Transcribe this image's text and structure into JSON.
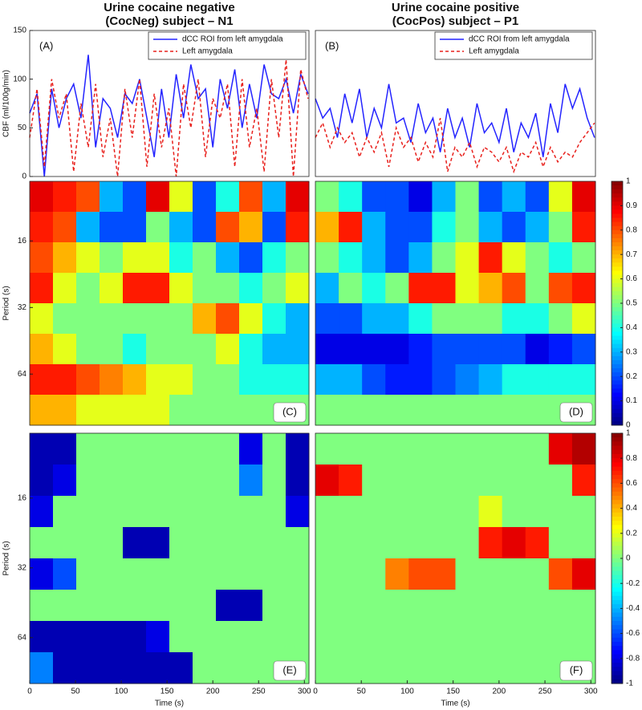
{
  "chart_data": [
    {
      "type": "line",
      "title": [
        "Urine cocaine negative",
        "(CocNeg) subject – N1"
      ],
      "panel_label": "(A)",
      "ylabel": "CBF (ml/100g/min)",
      "x": [
        0,
        8,
        16,
        24,
        32,
        40,
        48,
        56,
        64,
        72,
        80,
        88,
        96,
        104,
        112,
        120,
        128,
        136,
        144,
        152,
        160,
        168,
        176,
        184,
        192,
        200,
        208,
        216,
        224,
        232,
        240,
        248,
        256,
        264,
        272,
        280,
        288,
        296,
        304
      ],
      "xlim": [
        0,
        305
      ],
      "ylim": [
        0,
        150
      ],
      "yticks": [
        0,
        50,
        100,
        150
      ],
      "legend": "upper right",
      "series": [
        {
          "name": "dCC ROI from left amygdala",
          "color": "#2424ff",
          "linestyle": "solid",
          "values": [
            65,
            85,
            0,
            90,
            50,
            80,
            95,
            60,
            125,
            30,
            80,
            70,
            40,
            85,
            75,
            100,
            60,
            20,
            90,
            40,
            105,
            60,
            115,
            80,
            90,
            30,
            100,
            70,
            110,
            50,
            95,
            60,
            115,
            85,
            80,
            100,
            65,
            105,
            85
          ]
        },
        {
          "name": "Left amygdala",
          "color": "#e8201c",
          "linestyle": "dashed",
          "values": [
            40,
            90,
            10,
            100,
            60,
            85,
            5,
            75,
            30,
            95,
            20,
            60,
            0,
            90,
            40,
            100,
            10,
            85,
            30,
            70,
            0,
            95,
            50,
            100,
            20,
            80,
            60,
            95,
            10,
            100,
            30,
            70,
            5,
            100,
            40,
            120,
            0,
            110,
            80
          ]
        }
      ]
    },
    {
      "type": "line",
      "title": [
        "Urine cocaine positive",
        "(CocPos) subject – P1"
      ],
      "panel_label": "(B)",
      "x": [
        0,
        8,
        16,
        24,
        32,
        40,
        48,
        56,
        64,
        72,
        80,
        88,
        96,
        104,
        112,
        120,
        128,
        136,
        144,
        152,
        160,
        168,
        176,
        184,
        192,
        200,
        208,
        216,
        224,
        232,
        240,
        248,
        256,
        264,
        272,
        280,
        288,
        296,
        304
      ],
      "xlim": [
        0,
        305
      ],
      "ylim": [
        0,
        150
      ],
      "legend": "upper right",
      "series": [
        {
          "name": "dCC ROI from left amygdala",
          "color": "#2424ff",
          "linestyle": "solid",
          "values": [
            80,
            60,
            70,
            40,
            85,
            55,
            90,
            40,
            70,
            50,
            95,
            55,
            60,
            35,
            75,
            45,
            60,
            25,
            70,
            40,
            60,
            30,
            75,
            45,
            55,
            35,
            70,
            25,
            55,
            40,
            65,
            20,
            75,
            45,
            95,
            70,
            90,
            60,
            40
          ]
        },
        {
          "name": "Left amygdala",
          "color": "#e8201c",
          "linestyle": "dashed",
          "values": [
            40,
            55,
            30,
            50,
            35,
            45,
            20,
            40,
            25,
            45,
            10,
            50,
            30,
            40,
            15,
            35,
            20,
            60,
            5,
            30,
            20,
            35,
            10,
            30,
            25,
            15,
            30,
            5,
            25,
            20,
            35,
            10,
            30,
            15,
            25,
            20,
            35,
            45,
            55
          ]
        }
      ]
    },
    {
      "type": "heatmap",
      "panel_label": "(C)",
      "ylabel": "Period (s)",
      "log_y": true,
      "xlim": [
        0,
        305
      ],
      "ylim": [
        8.6,
        109
      ],
      "yticks": [
        16,
        32,
        64
      ],
      "zlim": [
        0,
        1
      ],
      "z": [
        [
          0.9,
          0.85,
          0.8,
          0.3,
          0.2,
          0.9,
          0.6,
          0.2,
          0.4,
          0.8,
          0.3,
          0.9
        ],
        [
          0.85,
          0.8,
          0.3,
          0.2,
          0.2,
          0.5,
          0.3,
          0.2,
          0.8,
          0.7,
          0.2,
          0.85
        ],
        [
          0.8,
          0.7,
          0.6,
          0.5,
          0.6,
          0.6,
          0.4,
          0.5,
          0.3,
          0.2,
          0.4,
          0.5
        ],
        [
          0.85,
          0.6,
          0.5,
          0.6,
          0.85,
          0.85,
          0.6,
          0.5,
          0.5,
          0.4,
          0.5,
          0.6
        ],
        [
          0.6,
          0.5,
          0.5,
          0.5,
          0.5,
          0.5,
          0.5,
          0.7,
          0.8,
          0.6,
          0.4,
          0.3
        ],
        [
          0.7,
          0.6,
          0.5,
          0.5,
          0.4,
          0.5,
          0.5,
          0.5,
          0.6,
          0.4,
          0.3,
          0.3
        ],
        [
          0.85,
          0.85,
          0.8,
          0.75,
          0.7,
          0.6,
          0.6,
          0.5,
          0.5,
          0.4,
          0.4,
          0.4
        ],
        [
          0.7,
          0.7,
          0.6,
          0.6,
          0.6,
          0.6,
          0.5,
          0.5,
          0.5,
          0.5,
          0.5,
          0.5
        ]
      ]
    },
    {
      "type": "heatmap",
      "panel_label": "(D)",
      "log_y": true,
      "xlim": [
        0,
        305
      ],
      "ylim": [
        8.6,
        109
      ],
      "zlim": [
        0,
        1
      ],
      "zticks": [
        0,
        0.1,
        0.2,
        0.3,
        0.4,
        0.5,
        0.6,
        0.7,
        0.8,
        0.9,
        1
      ],
      "z": [
        [
          0.5,
          0.4,
          0.2,
          0.2,
          0.1,
          0.3,
          0.5,
          0.2,
          0.3,
          0.2,
          0.6,
          0.9
        ],
        [
          0.7,
          0.85,
          0.3,
          0.2,
          0.2,
          0.4,
          0.5,
          0.3,
          0.2,
          0.3,
          0.5,
          0.85
        ],
        [
          0.5,
          0.4,
          0.3,
          0.2,
          0.3,
          0.5,
          0.6,
          0.85,
          0.6,
          0.5,
          0.4,
          0.5
        ],
        [
          0.3,
          0.5,
          0.4,
          0.5,
          0.85,
          0.85,
          0.6,
          0.7,
          0.8,
          0.5,
          0.8,
          0.85
        ],
        [
          0.2,
          0.2,
          0.3,
          0.3,
          0.4,
          0.5,
          0.5,
          0.5,
          0.4,
          0.4,
          0.5,
          0.6
        ],
        [
          0.1,
          0.1,
          0.1,
          0.1,
          0.15,
          0.2,
          0.2,
          0.2,
          0.2,
          0.1,
          0.15,
          0.2
        ],
        [
          0.3,
          0.3,
          0.2,
          0.15,
          0.15,
          0.2,
          0.25,
          0.3,
          0.4,
          0.4,
          0.4,
          0.4
        ],
        [
          0.5,
          0.5,
          0.5,
          0.5,
          0.5,
          0.5,
          0.5,
          0.5,
          0.5,
          0.5,
          0.5,
          0.5
        ]
      ]
    },
    {
      "type": "heatmap",
      "panel_label": "(E)",
      "ylabel": "Period (s)",
      "xlabel": "Time (s)",
      "log_y": true,
      "xlim": [
        0,
        305
      ],
      "xticks": [
        0,
        50,
        100,
        150,
        200,
        250,
        300
      ],
      "ylim": [
        8.4,
        101
      ],
      "yticks": [
        16,
        32,
        64
      ],
      "zlim": [
        -1,
        1
      ],
      "z": [
        [
          -0.9,
          -0.9,
          0,
          0,
          0,
          0,
          0,
          0,
          0,
          -0.8,
          0,
          -0.9
        ],
        [
          -0.9,
          -0.8,
          0,
          0,
          0,
          0,
          0,
          0,
          0,
          -0.5,
          0,
          -0.9
        ],
        [
          -0.8,
          0,
          0,
          0,
          0,
          0,
          0,
          0,
          0,
          0,
          0,
          -0.8
        ],
        [
          0,
          0,
          0,
          0,
          -0.9,
          -0.9,
          0,
          0,
          0,
          0,
          0,
          0
        ],
        [
          -0.8,
          -0.6,
          0,
          0,
          0,
          0,
          0,
          0,
          0,
          0,
          0,
          0
        ],
        [
          0,
          0,
          0,
          0,
          0,
          0,
          0,
          0,
          -0.9,
          -0.9,
          0,
          0
        ],
        [
          -0.9,
          -0.9,
          -0.9,
          -0.9,
          -0.9,
          -0.8,
          0,
          0,
          0,
          0,
          0,
          0
        ],
        [
          -0.5,
          -0.9,
          -0.9,
          -0.9,
          -0.9,
          -0.9,
          -0.9,
          0,
          0,
          0,
          0,
          0
        ]
      ]
    },
    {
      "type": "heatmap",
      "panel_label": "(F)",
      "xlabel": "Time (s)",
      "log_y": true,
      "xlim": [
        0,
        305
      ],
      "xticks": [
        0,
        50,
        100,
        150,
        200,
        250,
        300
      ],
      "ylim": [
        8.4,
        101
      ],
      "zlim": [
        -1,
        1
      ],
      "zticks": [
        -1,
        -0.8,
        -0.6,
        -0.4,
        -0.2,
        0,
        0.2,
        0.4,
        0.6,
        0.8,
        1
      ],
      "z": [
        [
          0,
          0,
          0,
          0,
          0,
          0,
          0,
          0,
          0,
          0,
          0.8,
          0.9
        ],
        [
          0.8,
          0.7,
          0,
          0,
          0,
          0,
          0,
          0,
          0,
          0,
          0,
          0.7
        ],
        [
          0,
          0,
          0,
          0,
          0,
          0,
          0,
          0.2,
          0,
          0,
          0,
          0
        ],
        [
          0,
          0,
          0,
          0,
          0,
          0,
          0,
          0.7,
          0.8,
          0.7,
          0,
          0
        ],
        [
          0,
          0,
          0,
          0.5,
          0.6,
          0.6,
          0,
          0,
          0,
          0,
          0.6,
          0.8
        ],
        [
          0,
          0,
          0,
          0,
          0,
          0,
          0,
          0,
          0,
          0,
          0,
          0
        ],
        [
          0,
          0,
          0,
          0,
          0,
          0,
          0,
          0,
          0,
          0,
          0,
          0
        ],
        [
          0,
          0,
          0,
          0,
          0,
          0,
          0,
          0,
          0,
          0,
          0,
          0
        ]
      ]
    }
  ]
}
